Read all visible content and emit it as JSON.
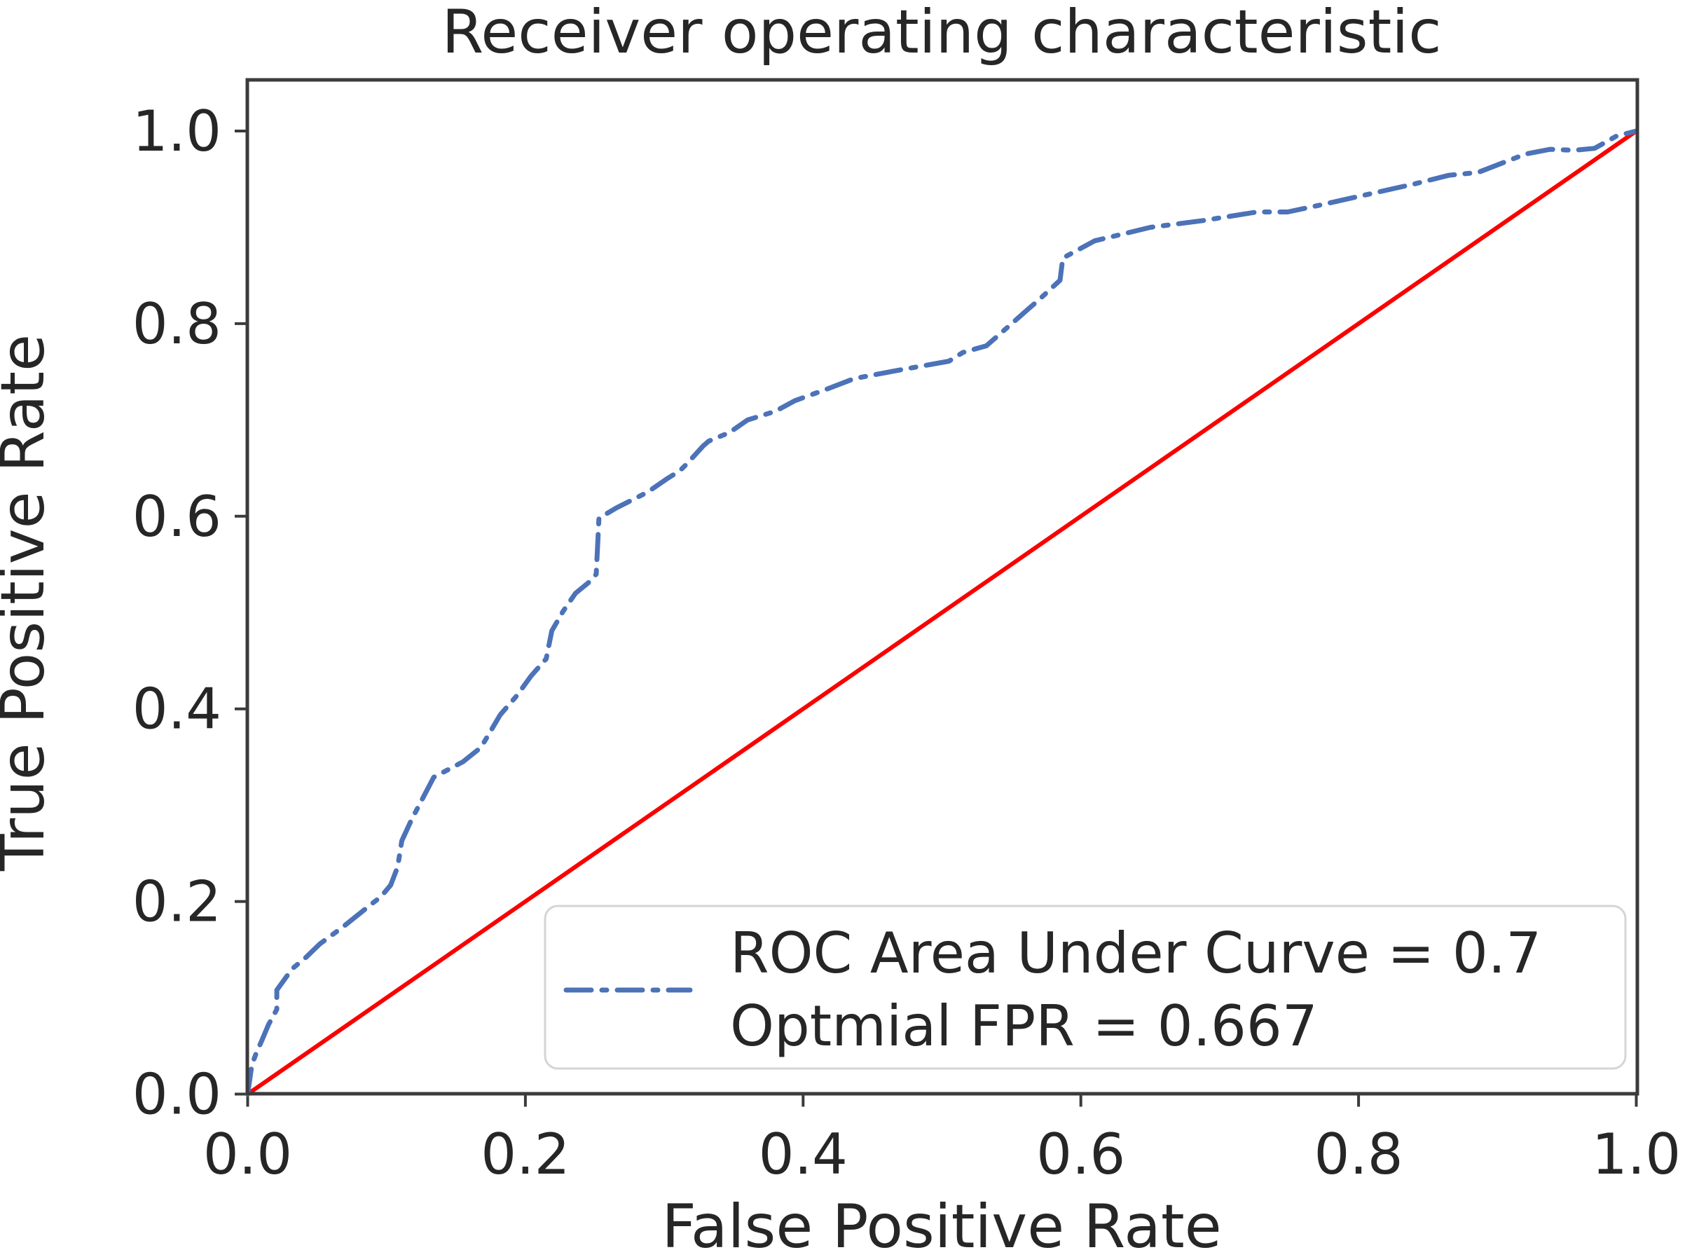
{
  "figure": {
    "title": "Receiver operating characteristic"
  },
  "chart_data": {
    "type": "line",
    "title": "Receiver operating characteristic",
    "xlabel": "False Positive Rate",
    "ylabel": "True Positive Rate",
    "xlim": [
      0.0,
      1.0
    ],
    "ylim": [
      0.0,
      1.05
    ],
    "xticks": [
      0.0,
      0.2,
      0.4,
      0.6,
      0.8,
      1.0
    ],
    "yticks": [
      0.0,
      0.2,
      0.4,
      0.6,
      0.8,
      1.0
    ],
    "grid": false,
    "legend_position": "lower right",
    "series": [
      {
        "name": "chance-diagonal",
        "style": "solid",
        "color": "#fb0000",
        "width": 6,
        "x": [
          0.0,
          1.0
        ],
        "y": [
          0.0,
          1.0
        ]
      },
      {
        "name": "ROC Area Under Curve = 0.7\nOptmial FPR = 0.667",
        "style": "dashdot",
        "color": "#4c72b8",
        "width": 7,
        "x": [
          0.0,
          0.003,
          0.006,
          0.01,
          0.015,
          0.021,
          0.021,
          0.032,
          0.042,
          0.052,
          0.069,
          0.088,
          0.096,
          0.103,
          0.108,
          0.111,
          0.118,
          0.134,
          0.155,
          0.168,
          0.182,
          0.194,
          0.204,
          0.215,
          0.219,
          0.227,
          0.236,
          0.247,
          0.251,
          0.253,
          0.266,
          0.288,
          0.302,
          0.311,
          0.316,
          0.328,
          0.332,
          0.347,
          0.36,
          0.38,
          0.394,
          0.417,
          0.437,
          0.47,
          0.505,
          0.515,
          0.532,
          0.562,
          0.57,
          0.585,
          0.587,
          0.61,
          0.65,
          0.688,
          0.727,
          0.749,
          0.772,
          0.806,
          0.84,
          0.865,
          0.886,
          0.92,
          0.938,
          0.955,
          0.97,
          0.986,
          1.0
        ],
        "y": [
          0.0,
          0.03,
          0.042,
          0.055,
          0.072,
          0.088,
          0.108,
          0.13,
          0.142,
          0.156,
          0.174,
          0.196,
          0.205,
          0.217,
          0.236,
          0.263,
          0.285,
          0.329,
          0.345,
          0.36,
          0.394,
          0.414,
          0.434,
          0.452,
          0.481,
          0.501,
          0.52,
          0.533,
          0.54,
          0.598,
          0.609,
          0.625,
          0.639,
          0.647,
          0.654,
          0.673,
          0.678,
          0.687,
          0.7,
          0.709,
          0.72,
          0.732,
          0.743,
          0.752,
          0.761,
          0.77,
          0.777,
          0.815,
          0.825,
          0.845,
          0.868,
          0.886,
          0.9,
          0.907,
          0.916,
          0.916,
          0.923,
          0.934,
          0.945,
          0.954,
          0.957,
          0.976,
          0.981,
          0.98,
          0.982,
          0.995,
          1.0
        ]
      }
    ],
    "annotations": {
      "auc": 0.7,
      "optimal_fpr": 0.667
    }
  },
  "legend": {
    "line1": "ROC Area Under Curve = 0.7",
    "line2": "Optmial FPR = 0.667"
  },
  "colors": {
    "roc_curve": "#4c72b8",
    "diagonal": "#fb0000",
    "spine": "#3b3b3b",
    "text": "#262626",
    "legend_border": "#d5d5d5"
  }
}
